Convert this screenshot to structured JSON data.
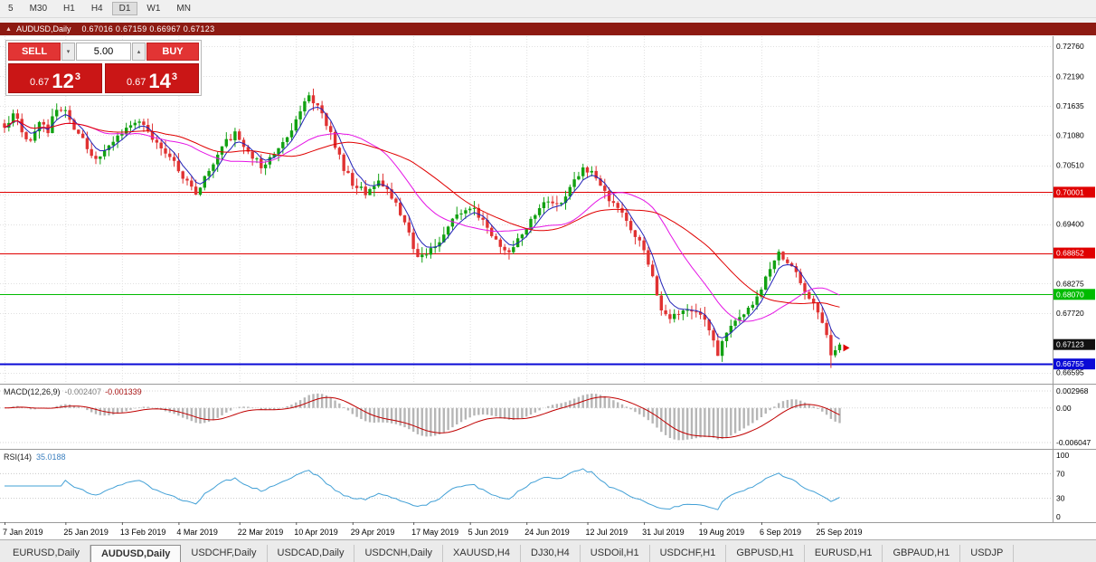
{
  "toolbar": {
    "periods": [
      "5",
      "M30",
      "H1",
      "H4",
      "D1",
      "W1",
      "MN"
    ],
    "active": "D1"
  },
  "icons": {
    "caption_icon": "▲",
    "spinner_down": "▾",
    "spinner_up": "▴"
  },
  "caption": {
    "symbol": "AUDUSD,Daily",
    "ohlc": "0.67016 0.67159 0.66967 0.67123"
  },
  "trade_panel": {
    "sell_label": "SELL",
    "buy_label": "BUY",
    "volume": "5.00",
    "sell_price": {
      "small": "0.67",
      "big": "12",
      "sup": "3"
    },
    "buy_price": {
      "small": "0.67",
      "big": "14",
      "sup": "3"
    }
  },
  "chart_data": {
    "type": "candlestick",
    "symbol": "AUDUSD",
    "timeframe": "Daily",
    "current": {
      "open": 0.67016,
      "high": 0.67159,
      "low": 0.66967,
      "close": 0.67123
    },
    "y_range": [
      0.664,
      0.7295
    ],
    "y_axis_labels": [
      "0.72760",
      "0.72190",
      "0.71635",
      "0.71080",
      "0.70510",
      "0.69955",
      "0.69400",
      "0.68275",
      "0.67720",
      "0.66595"
    ],
    "levels": [
      {
        "value": 0.70001,
        "label": "0.70001",
        "color": "#e00000",
        "width": 1
      },
      {
        "value": 0.68852,
        "label": "0.68852",
        "color": "#e00000",
        "width": 1
      },
      {
        "value": 0.6807,
        "label": "0.68070",
        "color": "#00bb00",
        "width": 1
      },
      {
        "value": 0.66755,
        "label": "0.66755",
        "color": "#0a0ad6",
        "width": 2
      }
    ],
    "price_badge": {
      "value": 0.67123,
      "label": "0.67123",
      "color": "#111111"
    },
    "num_candles": 193,
    "anchors": [
      [
        0,
        0.7125
      ],
      [
        2,
        0.7148
      ],
      [
        4,
        0.7118
      ],
      [
        6,
        0.7095
      ],
      [
        8,
        0.7132
      ],
      [
        10,
        0.7118
      ],
      [
        12,
        0.7158
      ],
      [
        14,
        0.7152
      ],
      [
        16,
        0.7118
      ],
      [
        19,
        0.7085
      ],
      [
        21,
        0.7058
      ],
      [
        24,
        0.7092
      ],
      [
        28,
        0.7125
      ],
      [
        31,
        0.7138
      ],
      [
        34,
        0.7102
      ],
      [
        38,
        0.7068
      ],
      [
        41,
        0.7032
      ],
      [
        44,
        0.7
      ],
      [
        47,
        0.7042
      ],
      [
        50,
        0.7088
      ],
      [
        53,
        0.7112
      ],
      [
        56,
        0.7078
      ],
      [
        59,
        0.7052
      ],
      [
        62,
        0.7072
      ],
      [
        65,
        0.7108
      ],
      [
        68,
        0.7152
      ],
      [
        70,
        0.718
      ],
      [
        72,
        0.7163
      ],
      [
        74,
        0.7128
      ],
      [
        76,
        0.7088
      ],
      [
        78,
        0.7045
      ],
      [
        80,
        0.7018
      ],
      [
        83,
        0.6998
      ],
      [
        86,
        0.7022
      ],
      [
        89,
        0.6993
      ],
      [
        92,
        0.6938
      ],
      [
        95,
        0.6878
      ],
      [
        98,
        0.689
      ],
      [
        101,
        0.6922
      ],
      [
        104,
        0.6958
      ],
      [
        107,
        0.6975
      ],
      [
        110,
        0.6948
      ],
      [
        113,
        0.6908
      ],
      [
        116,
        0.6885
      ],
      [
        119,
        0.6922
      ],
      [
        122,
        0.6962
      ],
      [
        125,
        0.6988
      ],
      [
        127,
        0.6972
      ],
      [
        130,
        0.7008
      ],
      [
        133,
        0.7042
      ],
      [
        135,
        0.7045
      ],
      [
        137,
        0.7018
      ],
      [
        139,
        0.6988
      ],
      [
        142,
        0.6958
      ],
      [
        145,
        0.6922
      ],
      [
        147,
        0.6892
      ],
      [
        149,
        0.6838
      ],
      [
        151,
        0.6782
      ],
      [
        153,
        0.6762
      ],
      [
        156,
        0.6782
      ],
      [
        159,
        0.6772
      ],
      [
        161,
        0.6758
      ],
      [
        163,
        0.6718
      ],
      [
        164,
        0.6695
      ],
      [
        166,
        0.6732
      ],
      [
        168,
        0.6758
      ],
      [
        170,
        0.6775
      ],
      [
        172,
        0.6792
      ],
      [
        174,
        0.6818
      ],
      [
        176,
        0.6855
      ],
      [
        178,
        0.6882
      ],
      [
        180,
        0.6868
      ],
      [
        182,
        0.6845
      ],
      [
        184,
        0.6818
      ],
      [
        186,
        0.6788
      ],
      [
        188,
        0.6758
      ],
      [
        189,
        0.6732
      ],
      [
        190,
        0.669
      ],
      [
        191,
        0.6702
      ],
      [
        192,
        0.6712
      ]
    ],
    "date_labels": [
      [
        0,
        "7 Jan 2019"
      ],
      [
        14,
        "25 Jan 2019"
      ],
      [
        27,
        "13 Feb 2019"
      ],
      [
        40,
        "4 Mar 2019"
      ],
      [
        54,
        "22 Mar 2019"
      ],
      [
        67,
        "10 Apr 2019"
      ],
      [
        80,
        "29 Apr 2019"
      ],
      [
        94,
        "17 May 2019"
      ],
      [
        107,
        "5 Jun 2019"
      ],
      [
        120,
        "24 Jun 2019"
      ],
      [
        134,
        "12 Jul 2019"
      ],
      [
        147,
        "31 Jul 2019"
      ],
      [
        160,
        "19 Aug 2019"
      ],
      [
        174,
        "6 Sep 2019"
      ],
      [
        187,
        "25 Sep 2019"
      ]
    ],
    "colors": {
      "up": "#12a112",
      "down": "#e03232",
      "ma_fast": "#2222b8",
      "ma_mid": "#e515e5",
      "ma_slow": "#e00000",
      "grid": "#e0e0e0",
      "arrow": "#e00000"
    }
  },
  "macd": {
    "label": "MACD(12,26,9)",
    "value_main": "-0.002407",
    "value_signal": "-0.001339",
    "axis": [
      "0.002968",
      "0.00",
      "-0.006047"
    ],
    "params": {
      "fast": 12,
      "slow": 26,
      "signal": 9
    },
    "colors": {
      "hist": "#b6b6b6",
      "signal": "#c00000"
    }
  },
  "rsi": {
    "label": "RSI(14)",
    "value": "35.0188",
    "period": 14,
    "axis": [
      "100",
      "70",
      "30",
      "0"
    ],
    "grid_levels": [
      70,
      30
    ],
    "color": "#42a0d6"
  },
  "tabs": {
    "items": [
      {
        "label": "EURUSD,Daily",
        "active": false
      },
      {
        "label": "AUDUSD,Daily",
        "active": true
      },
      {
        "label": "USDCHF,Daily",
        "active": false
      },
      {
        "label": "USDCAD,Daily",
        "active": false
      },
      {
        "label": "USDCNH,Daily",
        "active": false
      },
      {
        "label": "XAUUSD,H4",
        "active": false
      },
      {
        "label": "DJ30,H4",
        "active": false
      },
      {
        "label": "USDOil,H1",
        "active": false
      },
      {
        "label": "USDCHF,H1",
        "active": false
      },
      {
        "label": "GBPUSD,H1",
        "active": false
      },
      {
        "label": "EURUSD,H1",
        "active": false
      },
      {
        "label": "GBPAUD,H1",
        "active": false
      },
      {
        "label": "USDJP",
        "active": false
      }
    ]
  }
}
